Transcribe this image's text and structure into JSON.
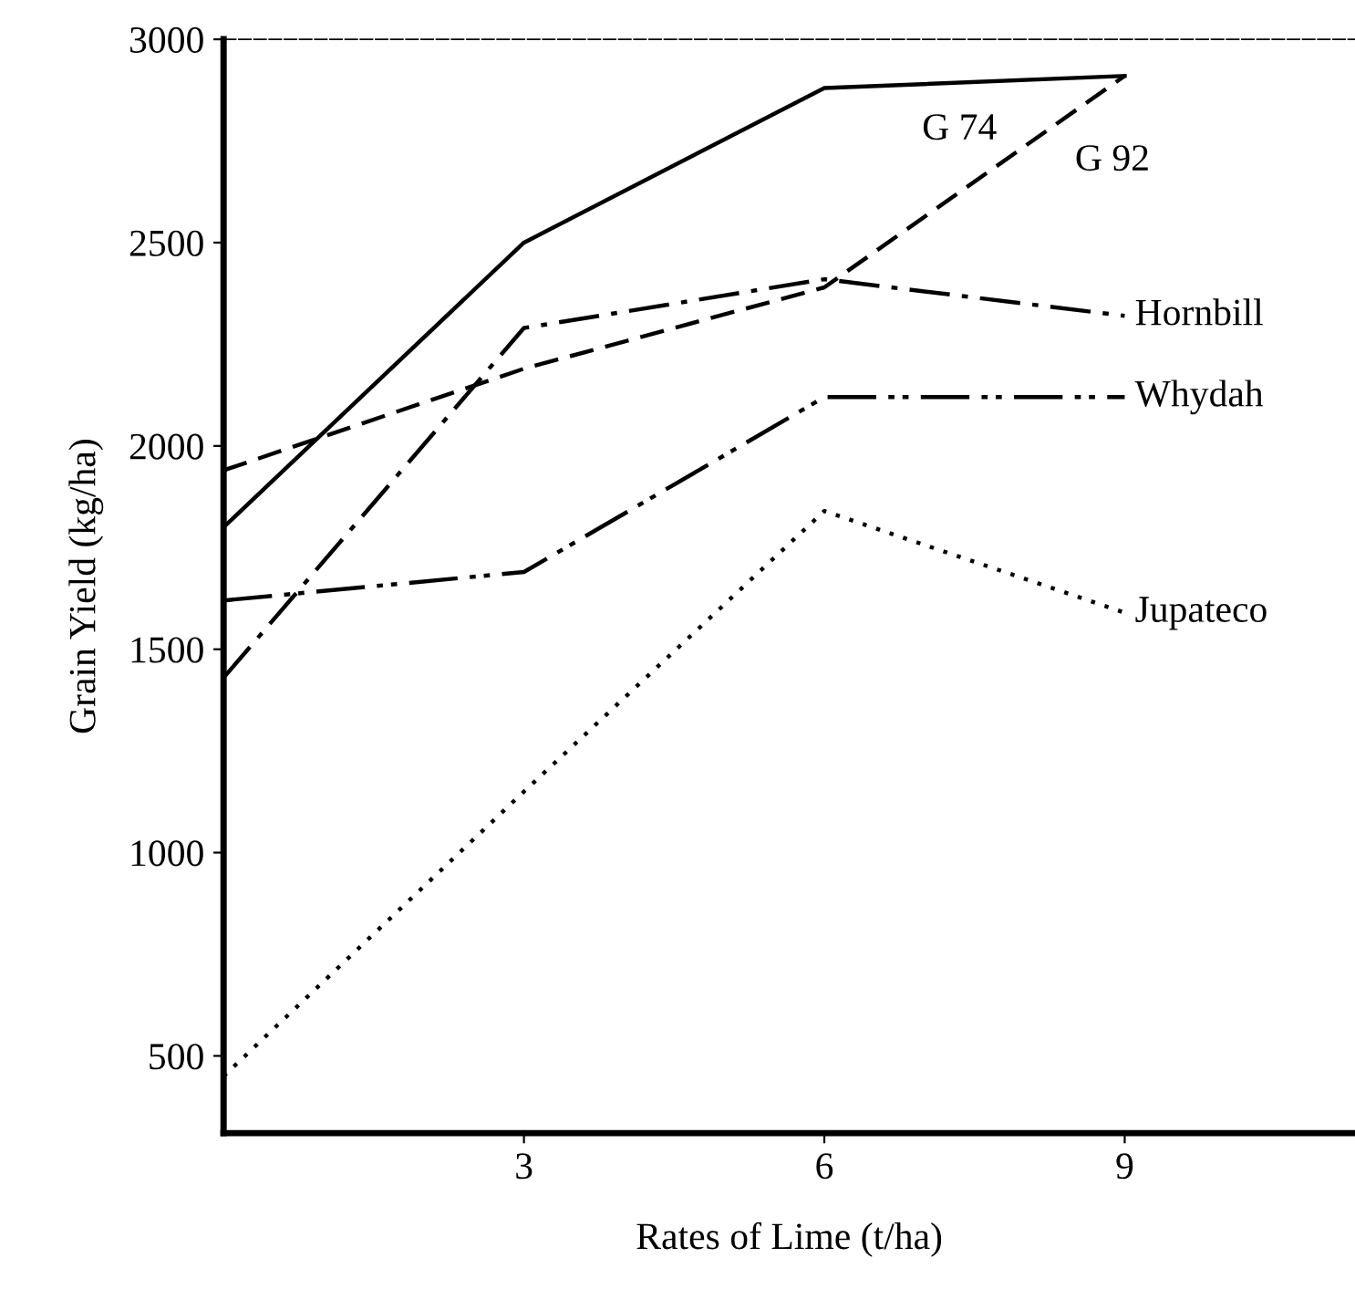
{
  "chart_data": {
    "type": "line",
    "xlabel": "Rates of Lime (t/ha)",
    "ylabel": "Grain Yield (kg/ha)",
    "x": [
      0,
      3,
      6,
      9
    ],
    "xlim": [
      0,
      11.3
    ],
    "xticks": [
      3,
      6,
      9
    ],
    "ylim": [
      310,
      3000
    ],
    "yticks": [
      500,
      1000,
      1500,
      2000,
      2500,
      3000
    ],
    "grid": false,
    "legend": false,
    "marker": "none",
    "series": [
      {
        "name": "G 74",
        "color": "#000000",
        "line_style": "solid",
        "values": [
          1800,
          2500,
          2880,
          2910
        ]
      },
      {
        "name": "G 92",
        "color": "#000000",
        "line_style": "dashed",
        "values": [
          1940,
          2190,
          2390,
          2910
        ]
      },
      {
        "name": "Hornbill",
        "color": "#000000",
        "line_style": "dashdot",
        "values": [
          1430,
          2290,
          2410,
          2320
        ]
      },
      {
        "name": "Whydah",
        "color": "#000000",
        "line_style": "dashdotdot",
        "values": [
          1620,
          1690,
          2120,
          2120
        ]
      },
      {
        "name": "Jupateco",
        "color": "#000000",
        "line_style": "dotted",
        "values": [
          450,
          1150,
          1840,
          1590
        ]
      }
    ]
  }
}
